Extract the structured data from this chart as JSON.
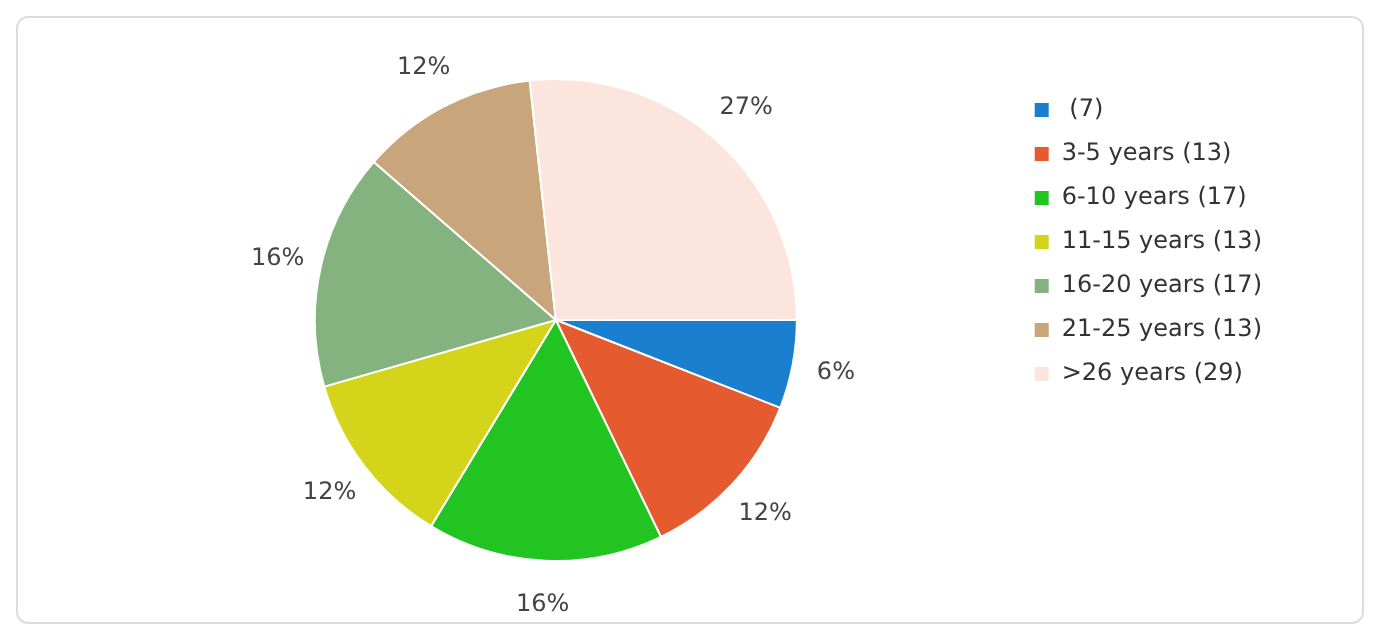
{
  "chart_data": {
    "type": "pie",
    "categories": [
      " (7)",
      "3-5 years (13)",
      "6-10 years (17)",
      "11-15 years (13)",
      "16-20 years (17)",
      "21-25 years (13)",
      ">26 years (29)"
    ],
    "values": [
      6,
      12,
      16,
      12,
      16,
      12,
      27
    ],
    "value_labels": [
      "6%",
      "12%",
      "16%",
      "12%",
      "16%",
      "12%",
      "27%"
    ],
    "colors": [
      "#1a7fcf",
      "#e55a2f",
      "#22c422",
      "#d4d41a",
      "#85b37f",
      "#c8a57a",
      "#fbe5dc"
    ],
    "legend": "top right"
  }
}
